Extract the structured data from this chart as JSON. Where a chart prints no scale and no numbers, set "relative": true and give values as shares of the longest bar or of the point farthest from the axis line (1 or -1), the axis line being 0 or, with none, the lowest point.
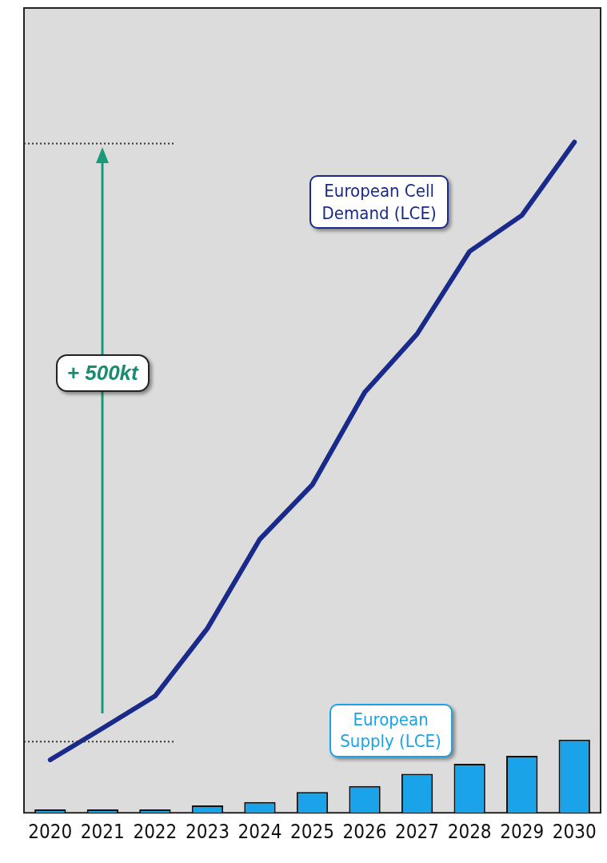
{
  "chart_data": {
    "type": "bar",
    "relative": true,
    "categories": [
      "2020",
      "2021",
      "2022",
      "2023",
      "2024",
      "2025",
      "2026",
      "2027",
      "2028",
      "2029",
      "2030"
    ],
    "series": [
      {
        "name": "European Cell Demand (LCE)",
        "type": "line",
        "color": "#1a2a8a",
        "values": [
          0.079,
          0.126,
          0.174,
          0.275,
          0.408,
          0.489,
          0.627,
          0.714,
          0.837,
          0.891,
          1
        ]
      },
      {
        "name": "European Supply (LCE)",
        "color": "#1aa3e8",
        "values": [
          0.005,
          0.005,
          0.005,
          0.011,
          0.016,
          0.031,
          0.04,
          0.058,
          0.073,
          0.085,
          0.109
        ]
      }
    ],
    "ref_lines": [
      {
        "axis": "y",
        "value": 0.106,
        "line_style": "dotted",
        "color": "#333333"
      },
      {
        "axis": "y",
        "value": 0.998,
        "line_style": "dotted",
        "color": "#333333"
      }
    ],
    "annotations": [
      "+ 500kt"
    ],
    "grid": false,
    "legend": false,
    "marker": "none"
  }
}
